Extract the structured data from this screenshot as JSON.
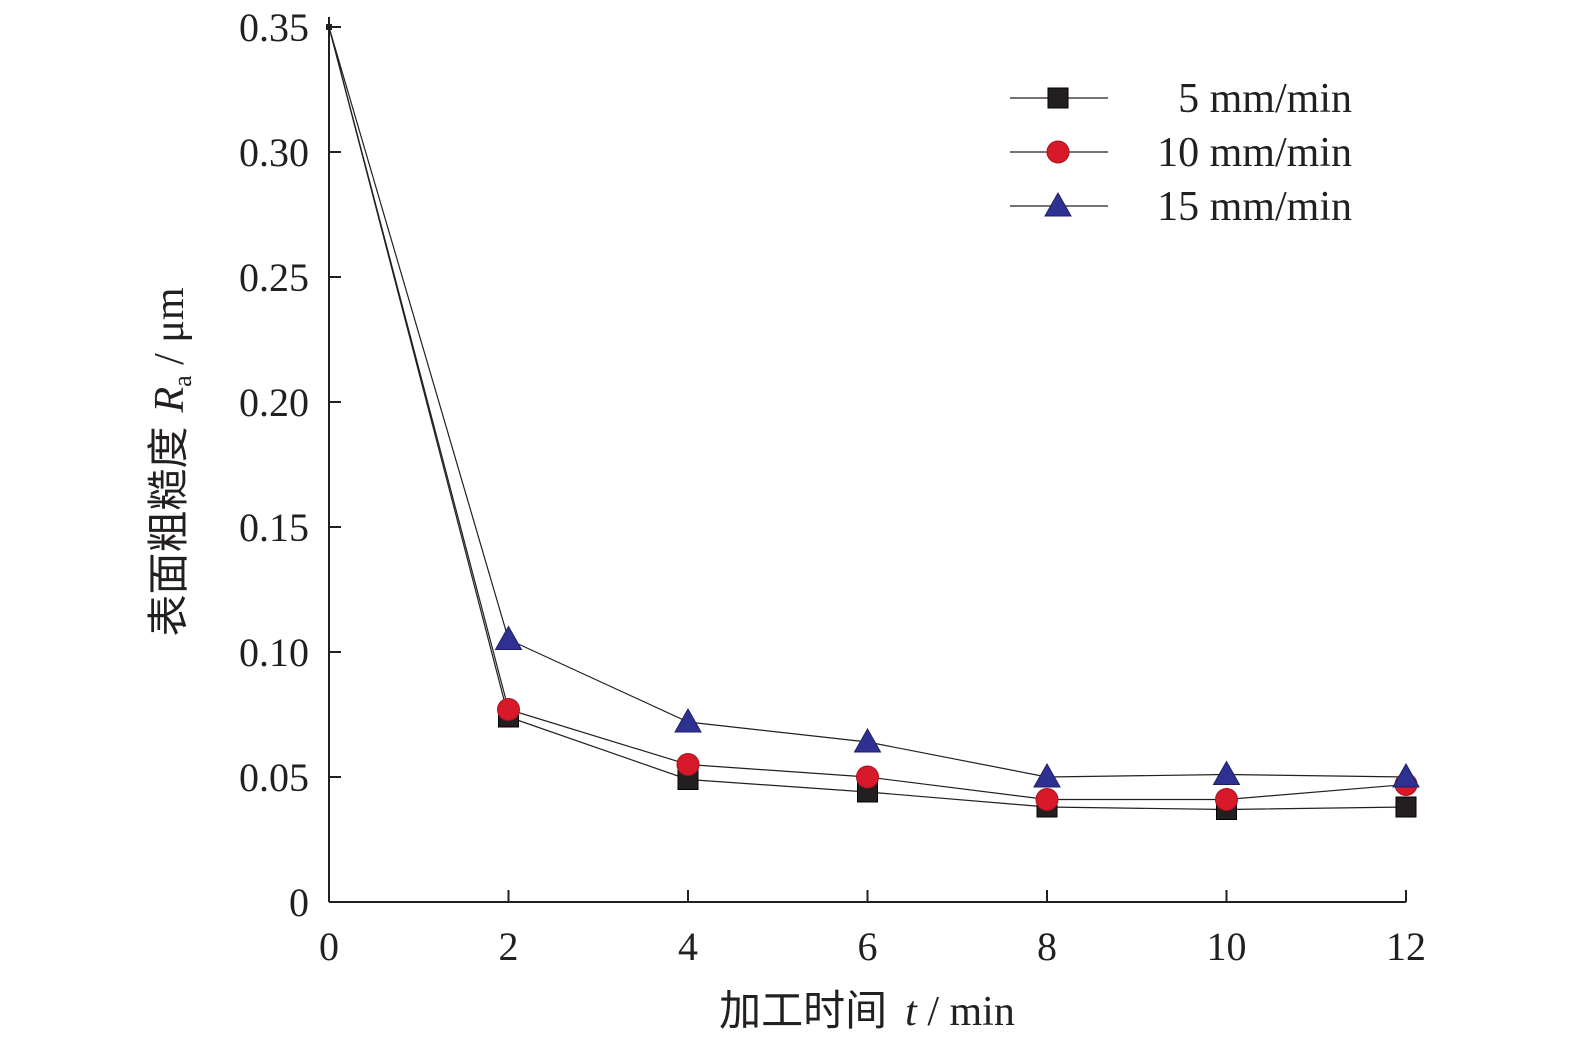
{
  "chart_data": {
    "type": "line",
    "xlabel": "加工时间",
    "xlabel_var": "t",
    "xlabel_unit": " / min",
    "ylabel": "表面粗糙度",
    "ylabel_var": "R",
    "ylabel_sub": "a",
    "ylabel_unit": " / μm",
    "x": [
      0,
      2,
      4,
      6,
      8,
      10,
      12
    ],
    "xlim": [
      0,
      12
    ],
    "ylim": [
      0,
      0.35
    ],
    "x_ticks": [
      "0",
      "2",
      "4",
      "6",
      "8",
      "10",
      "12"
    ],
    "y_ticks": [
      "0",
      "0.05",
      "0.10",
      "0.15",
      "0.20",
      "0.25",
      "0.30",
      "0.35"
    ],
    "y_tick_values": [
      0,
      0.05,
      0.1,
      0.15,
      0.2,
      0.25,
      0.3,
      0.35
    ],
    "grid": false,
    "legend_position": "top-right",
    "series": [
      {
        "name": "5 mm/min",
        "marker": "square",
        "color": "#231f20",
        "values": [
          0.35,
          0.074,
          0.049,
          0.044,
          0.038,
          0.037,
          0.038
        ]
      },
      {
        "name": "10 mm/min",
        "marker": "circle",
        "color": "#d7192a",
        "values": [
          0.35,
          0.077,
          0.055,
          0.05,
          0.041,
          0.041,
          0.047
        ]
      },
      {
        "name": "15 mm/min",
        "marker": "triangle",
        "color": "#2e3192",
        "values": [
          0.35,
          0.105,
          0.072,
          0.064,
          0.05,
          0.051,
          0.05
        ]
      }
    ]
  }
}
